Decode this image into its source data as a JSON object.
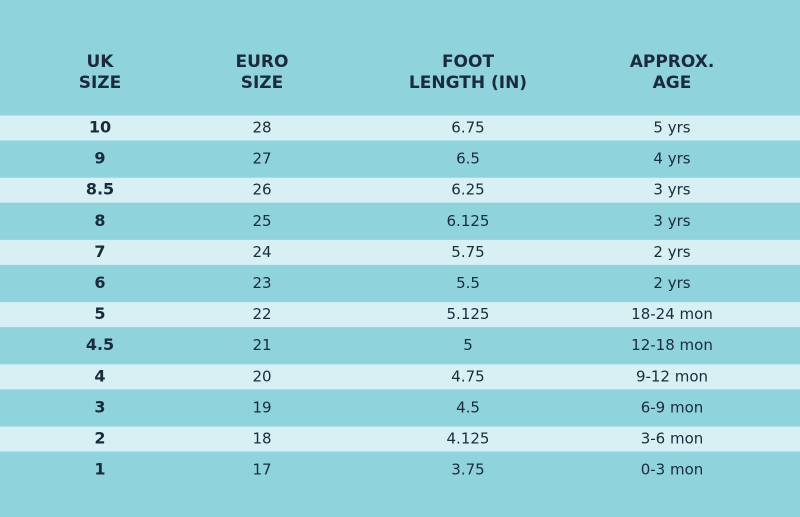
{
  "table": {
    "headers": [
      [
        "UK",
        "SIZE"
      ],
      [
        "EURO",
        "SIZE"
      ],
      [
        "FOOT",
        "LENGTH (IN)"
      ],
      [
        "APPROX.",
        "AGE"
      ]
    ],
    "rows": [
      [
        "10",
        "28",
        "6.75",
        "5 yrs"
      ],
      [
        "9",
        "27",
        "6.5",
        "4 yrs"
      ],
      [
        "8.5",
        "26",
        "6.25",
        "3 yrs"
      ],
      [
        "8",
        "25",
        "6.125",
        "3 yrs"
      ],
      [
        "7",
        "24",
        "5.75",
        "2 yrs"
      ],
      [
        "6",
        "23",
        "5.5",
        "2 yrs"
      ],
      [
        "5",
        "22",
        "5.125",
        "18-24 mon"
      ],
      [
        "4.5",
        "21",
        "5",
        "12-18 mon"
      ],
      [
        "4",
        "20",
        "4.75",
        "9-12 mon"
      ],
      [
        "3",
        "19",
        "4.5",
        "6-9 mon"
      ],
      [
        "2",
        "18",
        "4.125",
        "3-6 mon"
      ],
      [
        "1",
        "17",
        "3.75",
        "0-3 mon"
      ]
    ]
  }
}
